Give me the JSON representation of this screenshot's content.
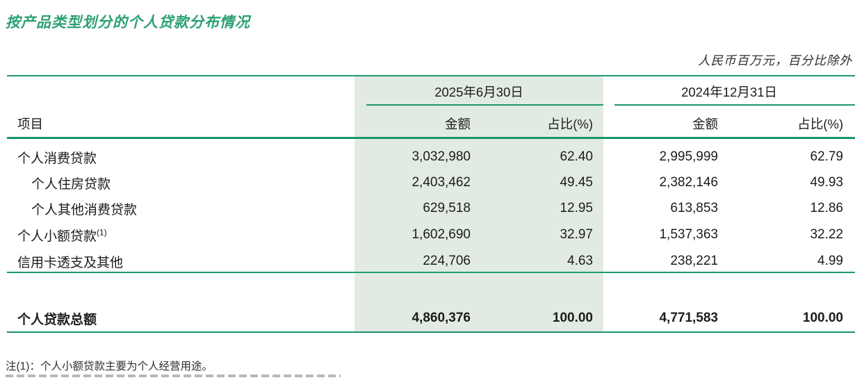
{
  "title": "按产品类型划分的个人贷款分布情况",
  "unit_note": "人民币百万元，百分比除外",
  "colors": {
    "accent_green": "#1b9a6c",
    "title_green": "#2da073",
    "highlight_band_bg": "#e2ebe3"
  },
  "table": {
    "periods": [
      {
        "label": "2025年6月30日"
      },
      {
        "label": "2024年12月31日"
      }
    ],
    "columns": {
      "item": "项目",
      "amount": "金额",
      "pct": "占比(%)"
    },
    "rows": [
      {
        "label": "个人消费贷款",
        "sup": "",
        "amount_2025": "3,032,980",
        "pct_2025": "62.40",
        "amount_2024": "2,995,999",
        "pct_2024": "62.79"
      },
      {
        "label": "个人住房贷款",
        "sup": "",
        "amount_2025": "2,403,462",
        "pct_2025": "49.45",
        "amount_2024": "2,382,146",
        "pct_2024": "49.93"
      },
      {
        "label": "个人其他消费贷款",
        "sup": "",
        "amount_2025": "629,518",
        "pct_2025": "12.95",
        "amount_2024": "613,853",
        "pct_2024": "12.86"
      },
      {
        "label": "个人小额贷款",
        "sup": "(1)",
        "amount_2025": "1,602,690",
        "pct_2025": "32.97",
        "amount_2024": "1,537,363",
        "pct_2024": "32.22"
      },
      {
        "label": "信用卡透支及其他",
        "sup": "",
        "amount_2025": "224,706",
        "pct_2025": "4.63",
        "amount_2024": "238,221",
        "pct_2024": "4.99"
      }
    ],
    "total_row": {
      "label": "个人贷款总额",
      "amount_2025": "4,860,376",
      "pct_2025": "100.00",
      "amount_2024": "4,771,583",
      "pct_2024": "100.00"
    }
  },
  "footnote": "注(1)：个人小额贷款主要为个人经营用途。"
}
